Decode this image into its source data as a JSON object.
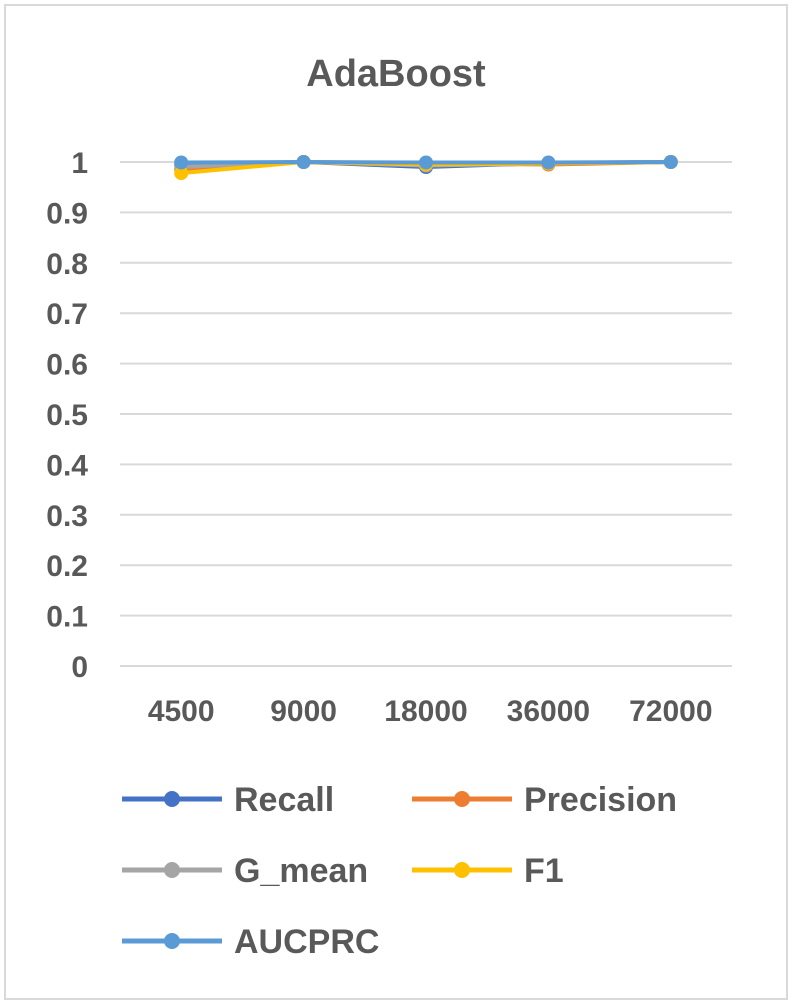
{
  "chart_data": {
    "type": "line",
    "title": "AdaBoost",
    "xlabel": "",
    "ylabel": "",
    "categories": [
      "4500",
      "9000",
      "18000",
      "36000",
      "72000"
    ],
    "ylim": [
      0,
      1
    ],
    "yticks": [
      "0",
      "0.1",
      "0.2",
      "0.3",
      "0.4",
      "0.5",
      "0.6",
      "0.7",
      "0.8",
      "0.9",
      "1"
    ],
    "grid": true,
    "legend_position": "bottom",
    "series": [
      {
        "name": "Recall",
        "color": "#4472c4",
        "values": [
          0.995,
          1.0,
          0.99,
          0.998,
          1.0
        ]
      },
      {
        "name": "Precision",
        "color": "#ed7d31",
        "values": [
          0.985,
          1.0,
          0.997,
          0.995,
          1.0
        ]
      },
      {
        "name": "G_mean",
        "color": "#a5a5a5",
        "values": [
          0.99,
          1.0,
          0.993,
          0.997,
          1.0
        ]
      },
      {
        "name": "F1",
        "color": "#ffc000",
        "values": [
          0.978,
          1.0,
          0.995,
          0.997,
          1.0
        ]
      },
      {
        "name": "AUCPRC",
        "color": "#5b9bd5",
        "values": [
          0.999,
          1.0,
          0.999,
          0.999,
          1.0
        ]
      }
    ]
  }
}
